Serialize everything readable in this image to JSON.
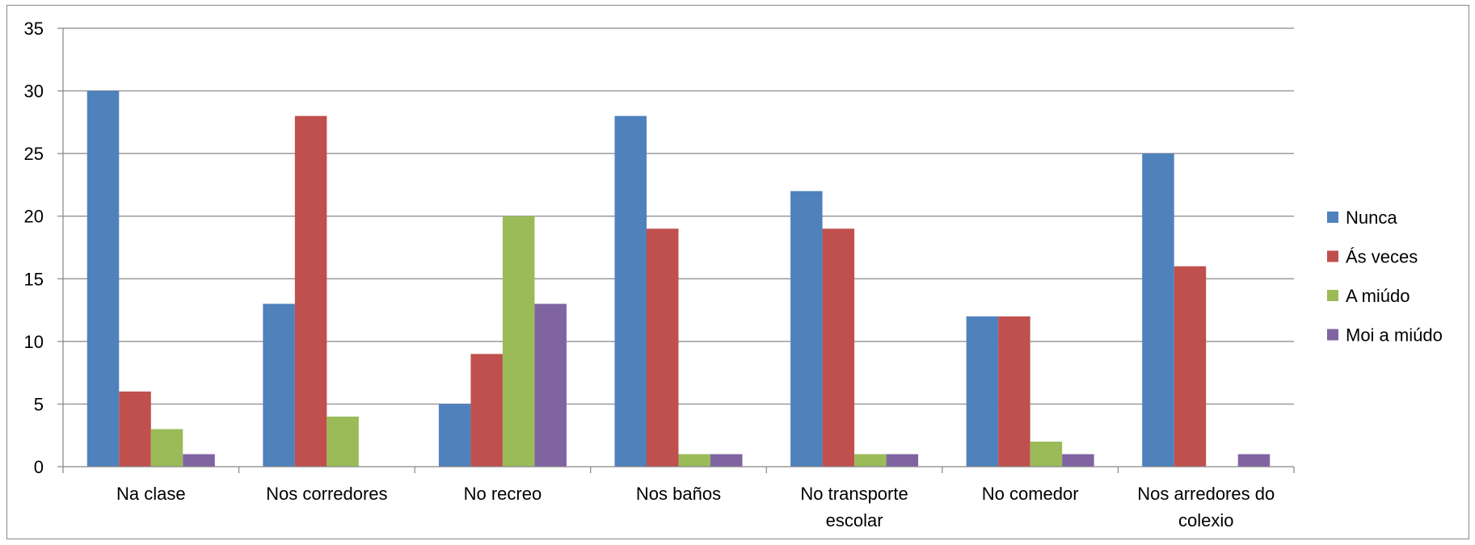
{
  "chart_data": {
    "type": "bar",
    "title": "",
    "xlabel": "",
    "ylabel": "",
    "ylim": [
      0,
      35
    ],
    "yticks": [
      "0",
      "5",
      "10",
      "15",
      "20",
      "25",
      "30",
      "35"
    ],
    "grid": true,
    "legend_position": "right",
    "categories": [
      [
        "Na clase"
      ],
      [
        "Nos corredores"
      ],
      [
        "No recreo"
      ],
      [
        "Nos baños"
      ],
      [
        "No transporte",
        "escolar"
      ],
      [
        "No comedor"
      ],
      [
        "Nos arredores do",
        "colexio"
      ]
    ],
    "series": [
      {
        "name": "Nunca",
        "color": "#4F81BD",
        "values": [
          30,
          13,
          5,
          28,
          22,
          12,
          25
        ]
      },
      {
        "name": "Ás veces",
        "color": "#C0504D",
        "values": [
          6,
          28,
          9,
          19,
          19,
          12,
          16
        ]
      },
      {
        "name": "A miúdo",
        "color": "#9BBB59",
        "values": [
          3,
          4,
          20,
          1,
          1,
          2,
          0
        ]
      },
      {
        "name": "Moi a miúdo",
        "color": "#8064A2",
        "values": [
          1,
          0,
          13,
          1,
          1,
          1,
          1
        ]
      }
    ]
  }
}
